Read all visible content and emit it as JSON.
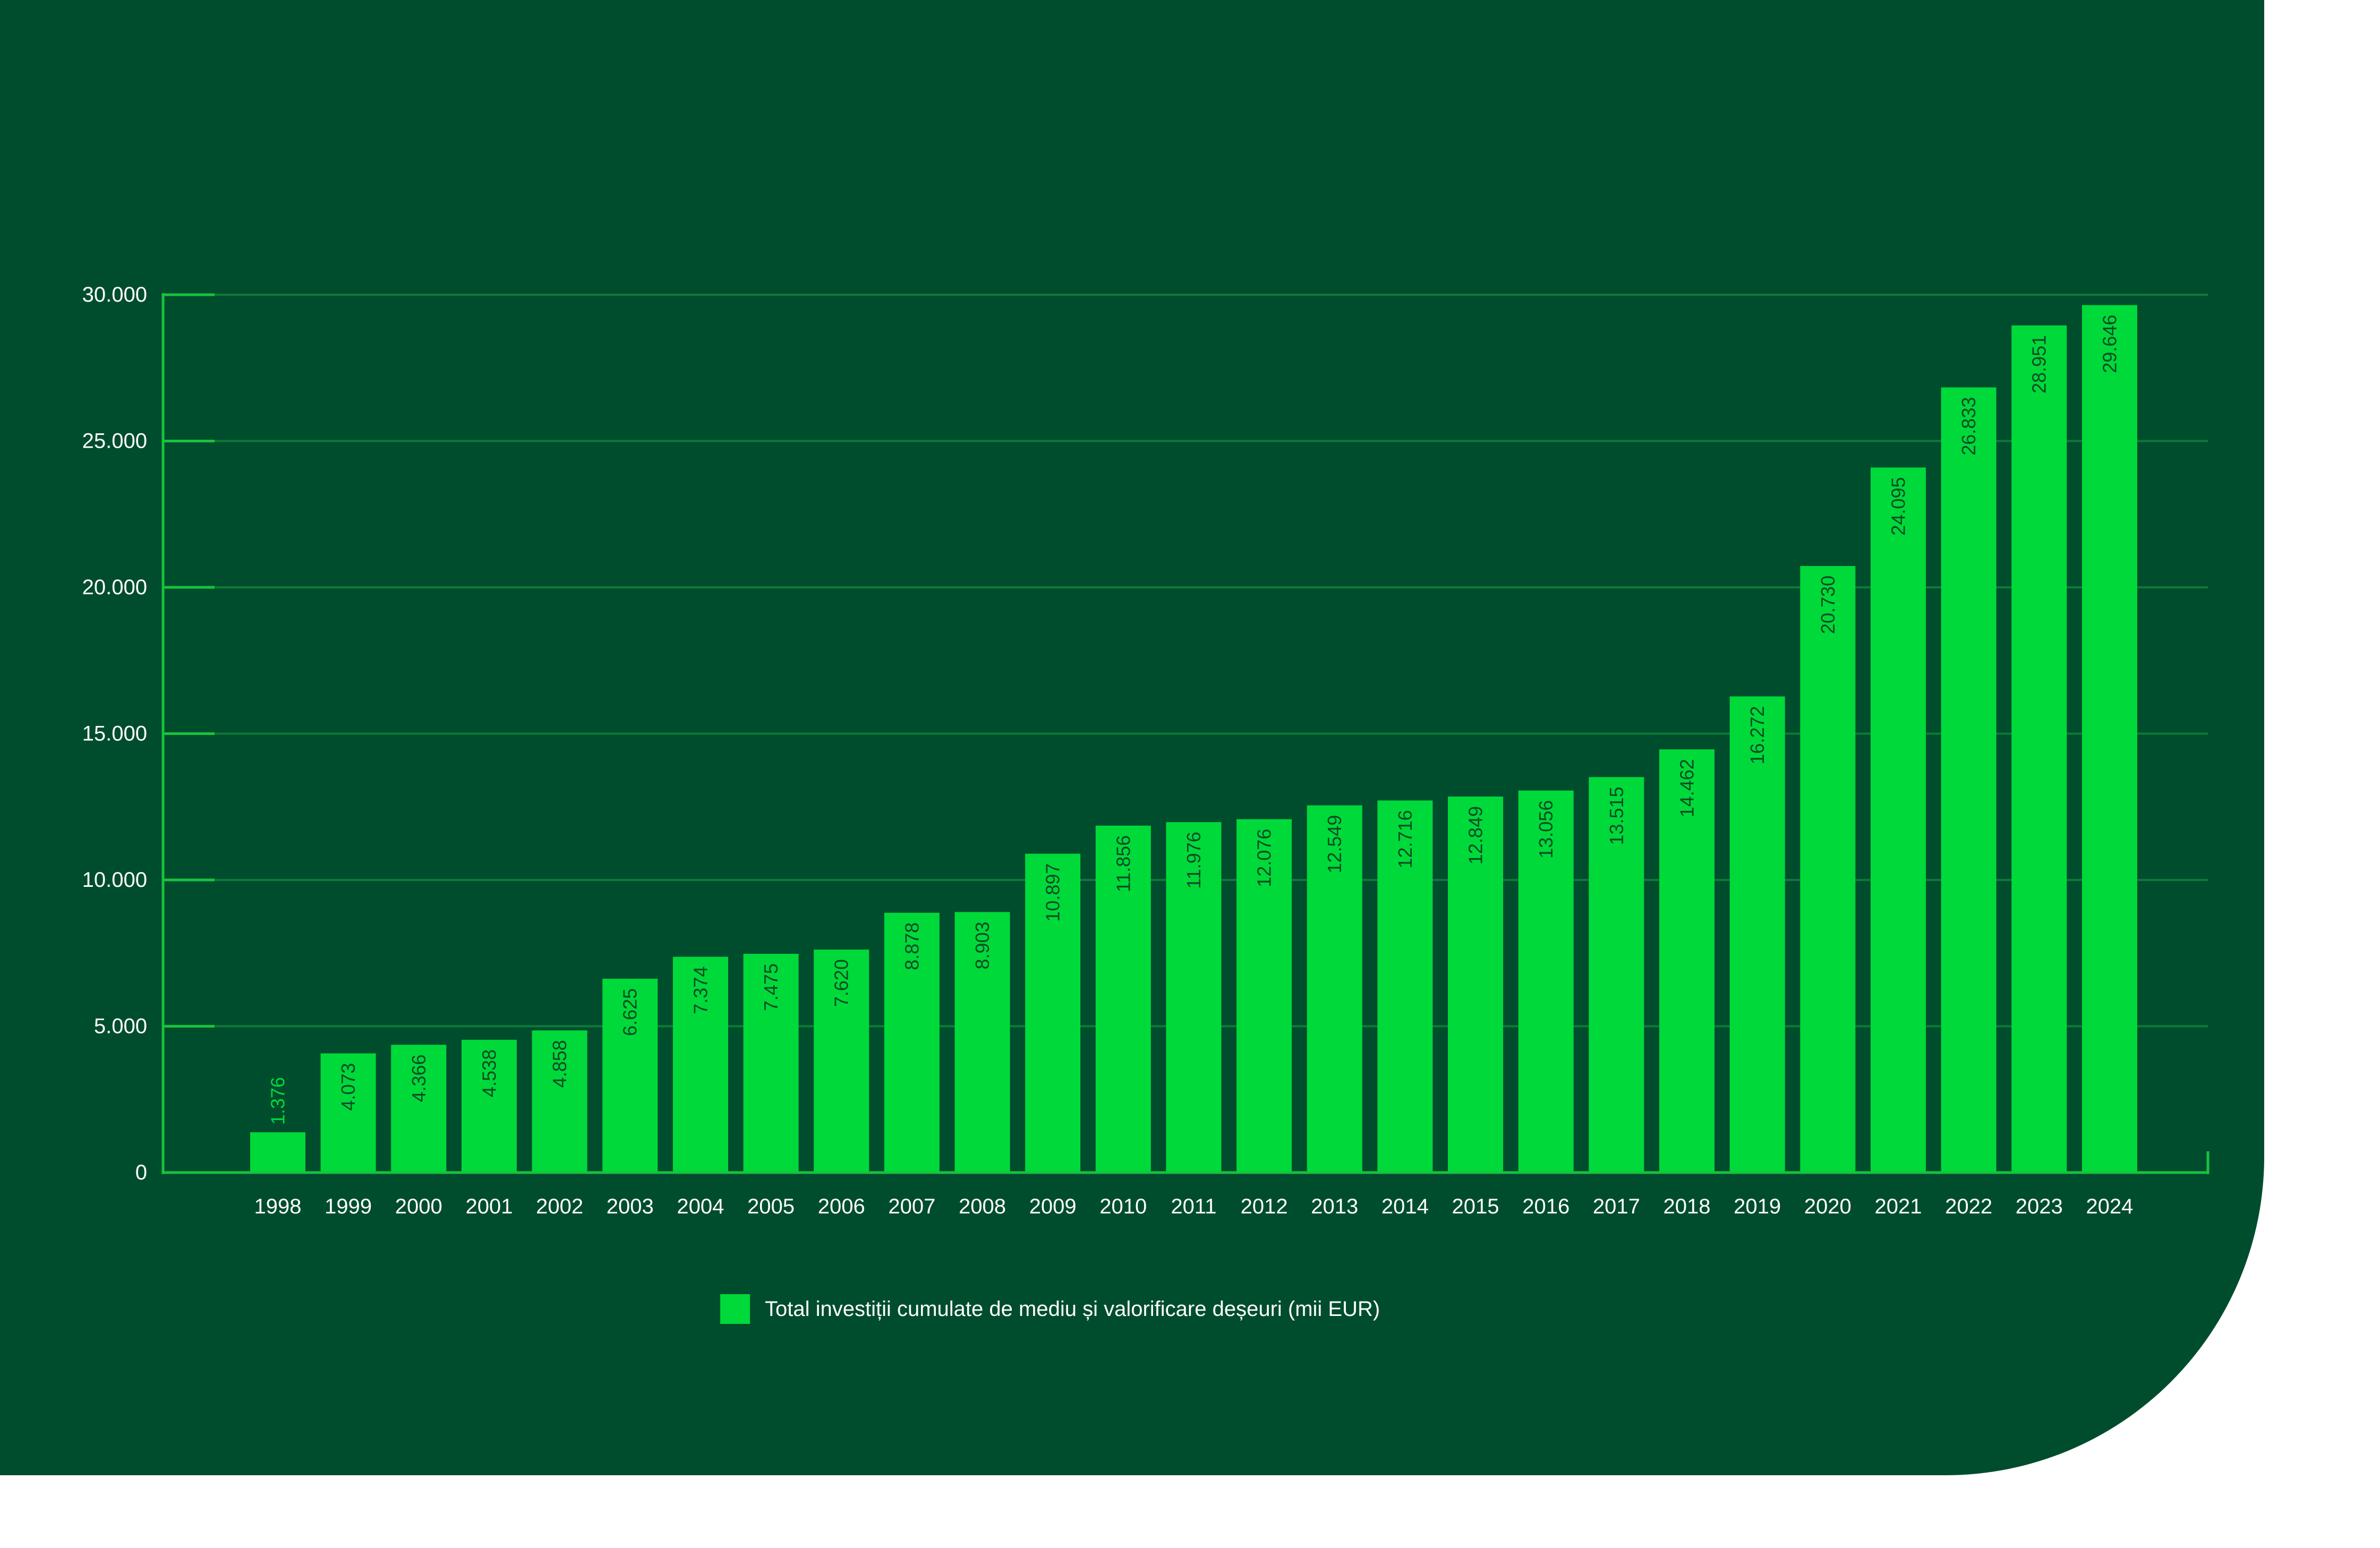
{
  "colors": {
    "background": "#004D2E",
    "bar": "#00D93A",
    "gridline": "#0E7A36",
    "axis": "#19C23D",
    "tick_text": "#FFFFFF",
    "label_inside": "#0B4A26",
    "label_outside": "#00D93A",
    "page": "#FFFFFF"
  },
  "chart_data": {
    "type": "bar",
    "title": "",
    "xlabel": "",
    "ylabel": "",
    "ylim": [
      0,
      30000
    ],
    "yticks": [
      0,
      5000,
      10000,
      15000,
      20000,
      25000,
      30000
    ],
    "ytick_labels": [
      "0",
      "5.000",
      "10.000",
      "15.000",
      "20.000",
      "25.000",
      "30.000"
    ],
    "grid": true,
    "legend_position": "bottom-center",
    "categories": [
      "1998",
      "1999",
      "2000",
      "2001",
      "2002",
      "2003",
      "2004",
      "2005",
      "2006",
      "2007",
      "2008",
      "2009",
      "2010",
      "2011",
      "2012",
      "2013",
      "2014",
      "2015",
      "2016",
      "2017",
      "2018",
      "2019",
      "2020",
      "2021",
      "2022",
      "2023",
      "2024"
    ],
    "series": [
      {
        "name": "Total investiții cumulate de mediu și valorificare deșeuri (mii EUR)",
        "values": [
          1376,
          4073,
          4366,
          4538,
          4858,
          6625,
          7374,
          7475,
          7620,
          8878,
          8903,
          10897,
          11856,
          11976,
          12076,
          12549,
          12716,
          12849,
          13056,
          13515,
          14462,
          16272,
          20730,
          24095,
          26833,
          28951,
          29646
        ],
        "value_labels": [
          "1.376",
          "4.073",
          "4.366",
          "4.538",
          "4.858",
          "6.625",
          "7.374",
          "7.475",
          "7.620",
          "8.878",
          "8.903",
          "10.897",
          "11.856",
          "11.976",
          "12.076",
          "12.549",
          "12.716",
          "12.849",
          "13.056",
          "13.515",
          "14.462",
          "16.272",
          "20.730",
          "24.095",
          "26.833",
          "28.951",
          "29.646"
        ]
      }
    ]
  }
}
